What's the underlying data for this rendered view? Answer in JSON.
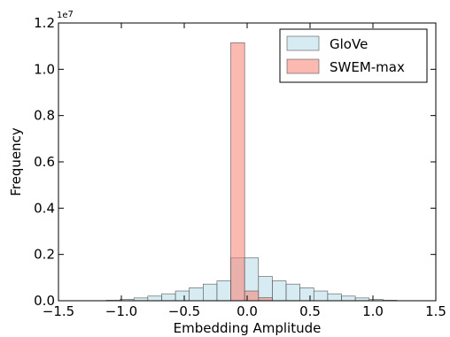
{
  "chart_data": {
    "type": "bar",
    "xlabel": "Embedding Amplitude",
    "ylabel": "Frequency",
    "y_scale_label": "1e7",
    "xlim": [
      -1.5,
      1.5
    ],
    "ylim": [
      0,
      12000000
    ],
    "xticks": [
      -1.5,
      -1.0,
      -0.5,
      0.0,
      0.5,
      1.0,
      1.5
    ],
    "xtick_labels": [
      "−1.5",
      "−1.0",
      "−0.5",
      "0.0",
      "0.5",
      "1.0",
      "1.5"
    ],
    "yticks": [
      0,
      2000000,
      4000000,
      6000000,
      8000000,
      10000000,
      12000000
    ],
    "ytick_labels": [
      "0.0",
      "0.2",
      "0.4",
      "0.6",
      "0.8",
      "1.0",
      "1.2"
    ],
    "grid": false,
    "legend_placement": "top-right",
    "series": [
      {
        "name": "GloVe",
        "color": "#add8e6",
        "bins": [
          {
            "x0": -1.12,
            "x1": -1.01,
            "value": 20000
          },
          {
            "x0": -1.01,
            "x1": -0.9,
            "value": 60000
          },
          {
            "x0": -0.9,
            "x1": -0.79,
            "value": 120000
          },
          {
            "x0": -0.79,
            "x1": -0.68,
            "value": 200000
          },
          {
            "x0": -0.68,
            "x1": -0.57,
            "value": 300000
          },
          {
            "x0": -0.57,
            "x1": -0.46,
            "value": 420000
          },
          {
            "x0": -0.46,
            "x1": -0.35,
            "value": 560000
          },
          {
            "x0": -0.35,
            "x1": -0.24,
            "value": 720000
          },
          {
            "x0": -0.24,
            "x1": -0.13,
            "value": 860000
          },
          {
            "x0": -0.13,
            "x1": -0.02,
            "value": 1850000
          },
          {
            "x0": -0.02,
            "x1": 0.09,
            "value": 1850000
          },
          {
            "x0": 0.09,
            "x1": 0.2,
            "value": 1050000
          },
          {
            "x0": 0.2,
            "x1": 0.31,
            "value": 860000
          },
          {
            "x0": 0.31,
            "x1": 0.42,
            "value": 720000
          },
          {
            "x0": 0.42,
            "x1": 0.53,
            "value": 560000
          },
          {
            "x0": 0.53,
            "x1": 0.64,
            "value": 420000
          },
          {
            "x0": 0.64,
            "x1": 0.75,
            "value": 300000
          },
          {
            "x0": 0.75,
            "x1": 0.86,
            "value": 200000
          },
          {
            "x0": 0.86,
            "x1": 0.97,
            "value": 120000
          },
          {
            "x0": 0.97,
            "x1": 1.08,
            "value": 60000
          },
          {
            "x0": 1.08,
            "x1": 1.19,
            "value": 20000
          }
        ]
      },
      {
        "name": "SWEM-max",
        "color": "#fa8072",
        "bins": [
          {
            "x0": -0.13,
            "x1": -0.02,
            "value": 11150000
          },
          {
            "x0": -0.02,
            "x1": 0.09,
            "value": 420000
          },
          {
            "x0": 0.09,
            "x1": 0.2,
            "value": 130000
          }
        ]
      }
    ]
  }
}
